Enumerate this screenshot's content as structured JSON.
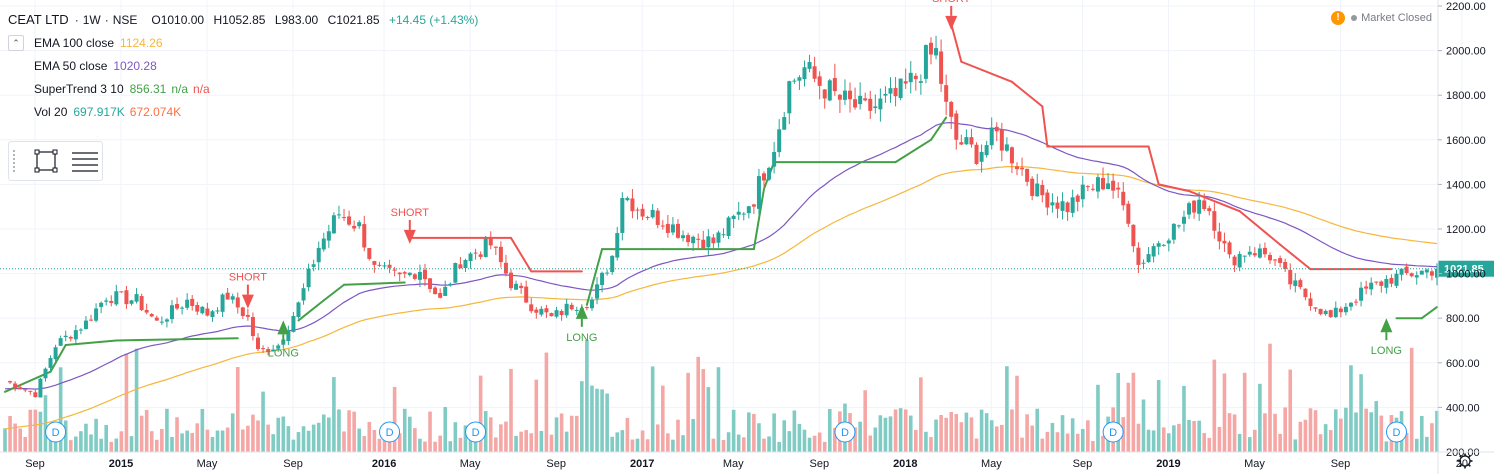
{
  "legend": {
    "symbol": "CEAT LTD",
    "sep1": "·",
    "timeframe": "1W",
    "sep2": "·",
    "exchange": "NSE",
    "open": "O1010.00",
    "high": "H1052.85",
    "low": "L983.00",
    "close": "C1021.85",
    "change": "+14.45 (+1.43%)",
    "indicators": [
      {
        "name": "EMA 100 close",
        "value": "1124.26",
        "color": "#f6b73c"
      },
      {
        "name": "EMA 50 close",
        "value": "1020.28",
        "color": "#7e57c2"
      },
      {
        "name": "SuperTrend 3 10",
        "value": "856.31",
        "value2": "n/a",
        "value3": "n/a",
        "color": "#43a047",
        "color2": "#ef5350"
      },
      {
        "name": "Vol 20",
        "value": "697.917K",
        "value2": "672.074K",
        "color": "#26a69a",
        "color2": "#ff7043"
      }
    ]
  },
  "market_status": {
    "icon": "alert-icon",
    "label": "Market Closed"
  },
  "colors": {
    "up": "#26a69a",
    "down": "#ef5350",
    "ema100": "#f6b73c",
    "ema50": "#7e57c2",
    "st_long": "#43a047",
    "st_short": "#ef5350",
    "vol_up": "#80cbc4",
    "vol_down": "#f4a7a5"
  },
  "chart_data": {
    "type": "candlestick",
    "timeframe": "1W",
    "x_tick_labels": [
      "Sep",
      "2015",
      "May",
      "Sep",
      "2016",
      "May",
      "Sep",
      "2017",
      "May",
      "Sep",
      "2018",
      "May",
      "Sep",
      "2019",
      "May",
      "Sep",
      "20"
    ],
    "y_tick_labels": [
      "200.00",
      "400.00",
      "600.00",
      "800.00",
      "1000.00",
      "1200.00",
      "1400.00",
      "1600.00",
      "1800.00",
      "2000.00",
      "2200.00"
    ],
    "ylim": [
      180,
      2210
    ],
    "last_price_label": "1021.85",
    "price_anchors_by_week": [
      [
        0,
        520
      ],
      [
        6,
        460
      ],
      [
        10,
        680
      ],
      [
        16,
        780
      ],
      [
        20,
        900
      ],
      [
        26,
        880
      ],
      [
        30,
        780
      ],
      [
        36,
        880
      ],
      [
        40,
        820
      ],
      [
        44,
        900
      ],
      [
        48,
        800
      ],
      [
        50,
        650
      ],
      [
        54,
        680
      ],
      [
        58,
        860
      ],
      [
        62,
        1120
      ],
      [
        66,
        1270
      ],
      [
        70,
        1210
      ],
      [
        73,
        1020
      ],
      [
        78,
        980
      ],
      [
        82,
        1020
      ],
      [
        86,
        880
      ],
      [
        90,
        1060
      ],
      [
        96,
        1130
      ],
      [
        100,
        960
      ],
      [
        104,
        860
      ],
      [
        108,
        800
      ],
      [
        112,
        860
      ],
      [
        116,
        880
      ],
      [
        120,
        1080
      ],
      [
        122,
        1360
      ],
      [
        126,
        1280
      ],
      [
        130,
        1240
      ],
      [
        134,
        1180
      ],
      [
        140,
        1140
      ],
      [
        144,
        1240
      ],
      [
        148,
        1340
      ],
      [
        152,
        1580
      ],
      [
        155,
        1850
      ],
      [
        158,
        1920
      ],
      [
        160,
        1870
      ],
      [
        165,
        1780
      ],
      [
        170,
        1730
      ],
      [
        176,
        1790
      ],
      [
        180,
        1880
      ],
      [
        182,
        1960
      ],
      [
        184,
        1990
      ],
      [
        186,
        1740
      ],
      [
        188,
        1600
      ],
      [
        192,
        1540
      ],
      [
        196,
        1620
      ],
      [
        200,
        1500
      ],
      [
        204,
        1360
      ],
      [
        210,
        1300
      ],
      [
        214,
        1380
      ],
      [
        218,
        1420
      ],
      [
        222,
        1260
      ],
      [
        224,
        1040
      ],
      [
        228,
        1150
      ],
      [
        232,
        1220
      ],
      [
        236,
        1340
      ],
      [
        238,
        1290
      ],
      [
        242,
        1060
      ],
      [
        246,
        1110
      ],
      [
        250,
        1080
      ],
      [
        254,
        960
      ],
      [
        258,
        880
      ],
      [
        262,
        800
      ],
      [
        266,
        880
      ],
      [
        270,
        940
      ],
      [
        274,
        980
      ],
      [
        278,
        1000
      ],
      [
        283,
        1021.85
      ]
    ],
    "supertrend_steps": [
      [
        0,
        470,
        "long"
      ],
      [
        9,
        560,
        "long"
      ],
      [
        12,
        680,
        "long"
      ],
      [
        22,
        700,
        "long"
      ],
      [
        46,
        710,
        "long"
      ],
      [
        48,
        870,
        "short"
      ],
      [
        58,
        790,
        "long"
      ],
      [
        63,
        880,
        "long"
      ],
      [
        67,
        950,
        "long"
      ],
      [
        79,
        960,
        "long"
      ],
      [
        80,
        1160,
        "short"
      ],
      [
        100,
        1160,
        "short"
      ],
      [
        104,
        1010,
        "short"
      ],
      [
        114,
        1010,
        "short"
      ],
      [
        115,
        860,
        "long"
      ],
      [
        118,
        1110,
        "long"
      ],
      [
        130,
        1110,
        "long"
      ],
      [
        148,
        1110,
        "long"
      ],
      [
        150,
        1380,
        "long"
      ],
      [
        152,
        1500,
        "long"
      ],
      [
        176,
        1500,
        "long"
      ],
      [
        183,
        1600,
        "long"
      ],
      [
        186,
        1700,
        "long"
      ],
      [
        187,
        2120,
        "short"
      ],
      [
        189,
        1950,
        "short"
      ],
      [
        199,
        1860,
        "short"
      ],
      [
        205,
        1750,
        "short"
      ],
      [
        206,
        1570,
        "short"
      ],
      [
        226,
        1570,
        "short"
      ],
      [
        228,
        1400,
        "short"
      ],
      [
        234,
        1370,
        "short"
      ],
      [
        244,
        1280,
        "short"
      ],
      [
        252,
        1130,
        "short"
      ],
      [
        258,
        1020,
        "short"
      ],
      [
        274,
        1020,
        "short"
      ],
      [
        275,
        800,
        "long"
      ],
      [
        280,
        800,
        "long"
      ],
      [
        283,
        850,
        "long"
      ]
    ],
    "signals": [
      {
        "label": "SHORT",
        "week": 48,
        "type": "short"
      },
      {
        "label": "LONG",
        "week": 55,
        "type": "long"
      },
      {
        "label": "SHORT",
        "week": 80,
        "type": "short"
      },
      {
        "label": "LONG",
        "week": 114,
        "type": "long"
      },
      {
        "label": "SHORT",
        "week": 187,
        "type": "short"
      },
      {
        "label": "LONG",
        "week": 273,
        "type": "long"
      }
    ],
    "dividend_markers": [
      {
        "label": "D",
        "week": 10
      },
      {
        "label": "D",
        "week": 76
      },
      {
        "label": "D",
        "week": 93
      },
      {
        "label": "D",
        "week": 166
      },
      {
        "label": "D",
        "week": 219
      },
      {
        "label": "D",
        "week": 275
      }
    ]
  }
}
